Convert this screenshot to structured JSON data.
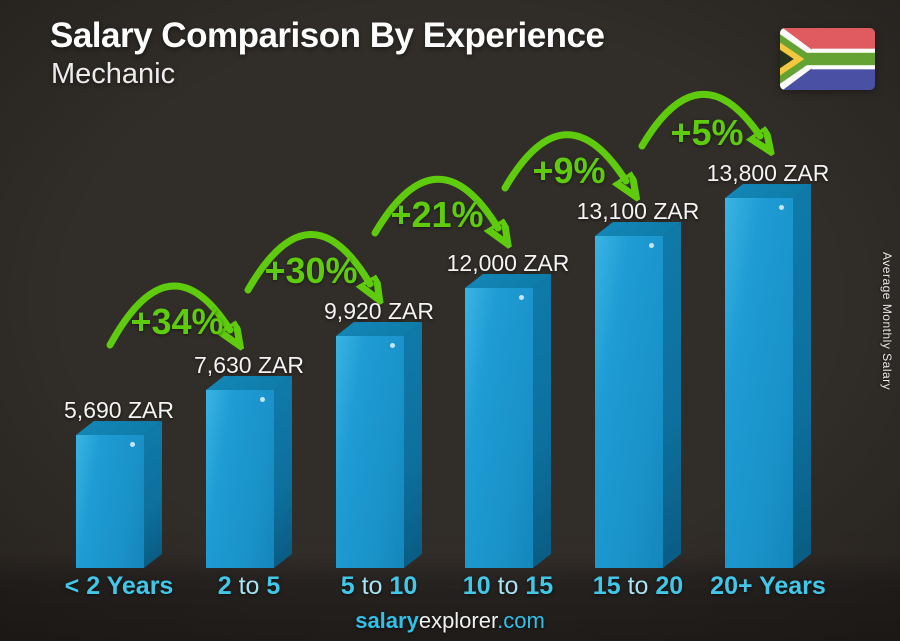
{
  "header": {
    "title": "Salary Comparison By Experience",
    "subtitle": "Mechanic"
  },
  "flag": {
    "country": "South Africa"
  },
  "y_axis_label": "Average Monthly Salary",
  "footer": {
    "brand_bold": "salary",
    "brand_regular": "explorer",
    "brand_suffix": ".com"
  },
  "chart_data": {
    "type": "bar",
    "title": "Salary Comparison By Experience",
    "subtitle": "Mechanic",
    "unit": "ZAR",
    "ylabel": "Average Monthly Salary",
    "categories": [
      "< 2 Years",
      "2 to 5",
      "5 to 10",
      "10 to 15",
      "15 to 20",
      "20+ Years"
    ],
    "values": [
      5690,
      7630,
      9920,
      12000,
      13100,
      13800
    ],
    "value_labels": [
      "5,690 ZAR",
      "7,630 ZAR",
      "9,920 ZAR",
      "12,000 ZAR",
      "13,100 ZAR",
      "13,800 ZAR"
    ],
    "percent_increases": [
      "+34%",
      "+30%",
      "+21%",
      "+9%",
      "+5%"
    ],
    "legend": "none",
    "grid": "off",
    "colors": {
      "bar_front": "#1e9cd4",
      "bar_side": "#0d6f9c",
      "bar_top": "#0f7ca9",
      "accent_green": "#5ecc0d",
      "axis_label_cyan": "#41c8e9",
      "value_label": "#f4f4f4"
    }
  }
}
